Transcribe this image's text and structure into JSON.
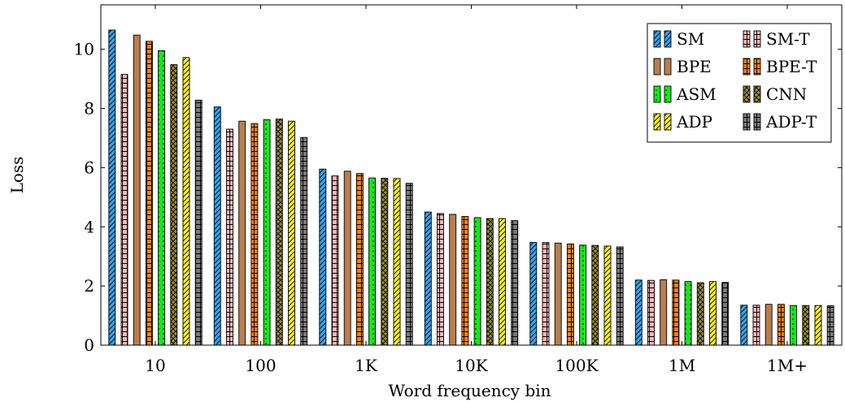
{
  "chart_data": {
    "type": "bar",
    "xlabel": "Word frequency bin",
    "ylabel": "Loss",
    "categories": [
      "10",
      "100",
      "1K",
      "10K",
      "100K",
      "1M",
      "1M+"
    ],
    "ylim": [
      0,
      11.5
    ],
    "yticks": [
      0,
      2,
      4,
      6,
      8,
      10
    ],
    "grid": false,
    "legend": {
      "position": "top-right",
      "columns": 2
    },
    "series": [
      {
        "name": "SM",
        "color": "#33a3ee",
        "pattern": "diagonal",
        "values": [
          10.65,
          8.05,
          5.95,
          4.5,
          3.47,
          2.2,
          1.35
        ]
      },
      {
        "name": "SM-T",
        "color": "#f6b6b6",
        "pattern": "grid",
        "values": [
          9.15,
          7.3,
          5.72,
          4.45,
          3.47,
          2.19,
          1.35
        ]
      },
      {
        "name": "BPE",
        "color": "#b87e4e",
        "pattern": "solid",
        "values": [
          10.48,
          7.57,
          5.88,
          4.42,
          3.45,
          2.21,
          1.38
        ]
      },
      {
        "name": "BPE-T",
        "color": "#ff7f16",
        "pattern": "grid",
        "values": [
          10.27,
          7.49,
          5.8,
          4.35,
          3.42,
          2.2,
          1.38
        ]
      },
      {
        "name": "ASM",
        "color": "#19e51e",
        "pattern": "dots",
        "values": [
          9.95,
          7.62,
          5.65,
          4.31,
          3.38,
          2.15,
          1.34
        ]
      },
      {
        "name": "CNN",
        "color": "#9a8e32",
        "pattern": "crosshatch",
        "values": [
          9.48,
          7.64,
          5.64,
          4.28,
          3.37,
          2.11,
          1.34
        ]
      },
      {
        "name": "ADP",
        "color": "#fff11a",
        "pattern": "diagonal",
        "values": [
          9.72,
          7.57,
          5.63,
          4.28,
          3.35,
          2.15,
          1.34
        ]
      },
      {
        "name": "ADP-T",
        "color": "#7a7a7a",
        "pattern": "grid",
        "values": [
          8.28,
          7.02,
          5.47,
          4.21,
          3.32,
          2.12,
          1.33
        ]
      }
    ]
  }
}
